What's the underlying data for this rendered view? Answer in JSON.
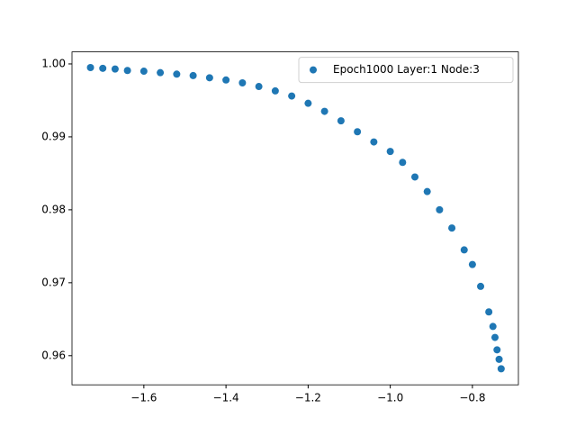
{
  "chart_data": {
    "type": "scatter",
    "legend": "upper right",
    "grid": false,
    "series": [
      {
        "name": "Epoch1000 Layer:1 Node:3",
        "color": "#1f77b4",
        "x": [
          -1.73,
          -1.7,
          -1.67,
          -1.64,
          -1.6,
          -1.56,
          -1.52,
          -1.48,
          -1.44,
          -1.4,
          -1.36,
          -1.32,
          -1.28,
          -1.24,
          -1.2,
          -1.16,
          -1.12,
          -1.08,
          -1.04,
          -1.0,
          -0.97,
          -0.94,
          -0.91,
          -0.88,
          -0.85,
          -0.82,
          -0.8,
          -0.78,
          -0.76,
          -0.75,
          -0.745,
          -0.74,
          -0.735,
          -0.73
        ],
        "values": [
          0.9995,
          0.9994,
          0.9993,
          0.9991,
          0.999,
          0.9988,
          0.9986,
          0.9984,
          0.9981,
          0.9978,
          0.9974,
          0.9969,
          0.9963,
          0.9956,
          0.9946,
          0.9935,
          0.9922,
          0.9907,
          0.9893,
          0.988,
          0.9865,
          0.9845,
          0.9825,
          0.98,
          0.9775,
          0.9745,
          0.9725,
          0.9695,
          0.966,
          0.964,
          0.9625,
          0.9608,
          0.9595,
          0.9582
        ]
      }
    ],
    "xlim": [
      -1.775,
      -0.688
    ],
    "xticks": [
      {
        "value": -1.6,
        "label": "−1.6"
      },
      {
        "value": -1.4,
        "label": "−1.4"
      },
      {
        "value": -1.2,
        "label": "−1.2"
      },
      {
        "value": -1.0,
        "label": "−1.0"
      },
      {
        "value": -0.8,
        "label": "−0.8"
      }
    ],
    "ylim": [
      0.956,
      1.00165
    ],
    "yticks": [
      {
        "value": 0.96,
        "label": "0.96"
      },
      {
        "value": 0.97,
        "label": "0.97"
      },
      {
        "value": 0.98,
        "label": "0.98"
      },
      {
        "value": 0.99,
        "label": "0.99"
      },
      {
        "value": 1.0,
        "label": "1.00"
      }
    ]
  }
}
